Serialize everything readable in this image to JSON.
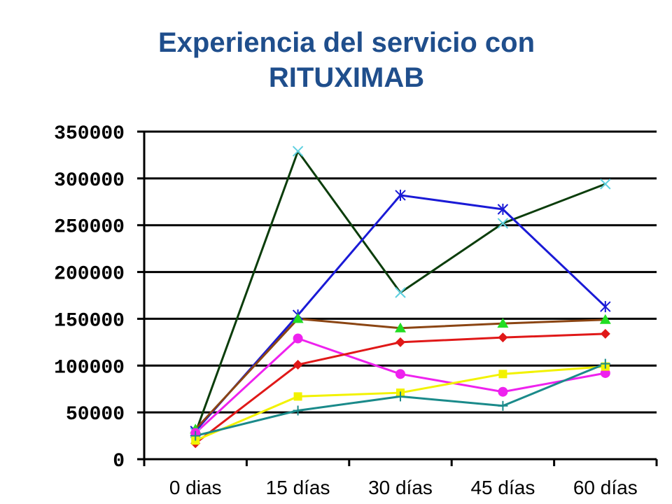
{
  "chart_data": {
    "type": "line",
    "title": "Experiencia del servicio con RITUXIMAB",
    "title_lines": [
      "Experiencia del servicio con",
      "RITUXIMAB"
    ],
    "title_color": "#1f4e8c",
    "categories": [
      "0 dias",
      "15 días",
      "30 días",
      "45 días",
      "60 días"
    ],
    "ylim": [
      0,
      350000
    ],
    "yticks": [
      0,
      50000,
      100000,
      150000,
      200000,
      250000,
      300000,
      350000
    ],
    "ytick_labels": [
      "0",
      "50000",
      "100000",
      "150000",
      "200000",
      "250000",
      "300000",
      "350000"
    ],
    "grid": true,
    "legend": "none",
    "series": [
      {
        "values": [
          28000,
          329000,
          178000,
          252000,
          294000
        ],
        "color": "#0b3d0b",
        "marker_color": "#5fd0e0",
        "marker": "x"
      },
      {
        "values": [
          30000,
          154000,
          282000,
          267000,
          163000
        ],
        "color": "#1a1ad6",
        "marker_color": "#1a1ad6",
        "marker": "star"
      },
      {
        "values": [
          32000,
          150000,
          140000,
          145000,
          149000
        ],
        "color": "#8b4513",
        "marker_color": "#22dd22",
        "marker": "triangle"
      },
      {
        "values": [
          28000,
          129000,
          91000,
          72000,
          92000
        ],
        "color": "#ee22ee",
        "marker_color": "#ee22ee",
        "marker": "circle"
      },
      {
        "values": [
          17000,
          101000,
          125000,
          130000,
          134000
        ],
        "color": "#e01818",
        "marker_color": "#e01818",
        "marker": "diamond"
      },
      {
        "values": [
          20000,
          67000,
          71000,
          91000,
          99000
        ],
        "color": "#f2f200",
        "marker_color": "#f2f200",
        "marker": "square"
      },
      {
        "values": [
          25000,
          52000,
          67000,
          57000,
          102000
        ],
        "color": "#1a8a8a",
        "marker_color": "#1a8a8a",
        "marker": "plus"
      }
    ]
  }
}
